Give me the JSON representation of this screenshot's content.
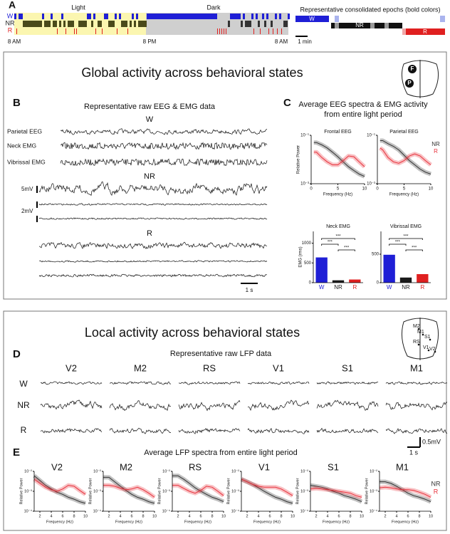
{
  "panel_a": {
    "letter": "A",
    "light_label": "Light",
    "dark_label": "Dark",
    "states": [
      "W",
      "NR",
      "R"
    ],
    "state_colors": [
      "#1f1fd6",
      "#1a1a1a",
      "#e02020"
    ],
    "times": [
      "8 AM",
      "8 PM",
      "8 AM"
    ],
    "epochs_title": "Representative consolidated epochs (bold colors)",
    "epoch_states": [
      "W",
      "NR",
      "R"
    ],
    "scale_label": "1 min"
  },
  "global": {
    "title": "Global activity across behavioral states",
    "electrodes": [
      "F",
      "P"
    ],
    "panel_b": {
      "letter": "B",
      "title": "Representative raw EEG & EMG data",
      "states": [
        "W",
        "NR",
        "R"
      ],
      "channels": [
        "Parietal EEG",
        "Neck EMG",
        "Vibrissal EMG"
      ],
      "scales": [
        "5mV",
        "2mV",
        "1 s"
      ]
    },
    "panel_c": {
      "letter": "C",
      "title_lines": [
        "Average EEG spectra & EMG activity",
        "from entire light period"
      ],
      "spectra": {
        "type": "line",
        "x_label": "Frequency (Hz)",
        "y_label": "Relative Power",
        "log_y": true,
        "xlim": [
          0,
          10
        ],
        "xticks": [
          0,
          5,
          10
        ],
        "ylim": [
          0.001,
          0.1
        ],
        "yticks": [
          {
            "value": 0.1,
            "label": "10⁻¹"
          },
          {
            "value": 0.001,
            "label": "10⁻³"
          }
        ],
        "x": [
          0.5,
          1,
          2,
          3,
          4,
          5,
          6,
          7,
          8,
          9,
          10
        ],
        "panels": [
          {
            "title": "Frontal EEG",
            "series": [
              {
                "name": "NR",
                "color": "#333333",
                "values": [
                  0.05,
                  0.05,
                  0.04,
                  0.03,
                  0.02,
                  0.013,
                  0.008,
                  0.005,
                  0.0035,
                  0.0025,
                  0.002
                ]
              },
              {
                "name": "R",
                "color": "#e8323c",
                "values": [
                  0.02,
                  0.02,
                  0.012,
                  0.008,
                  0.006,
                  0.006,
                  0.009,
                  0.014,
                  0.013,
                  0.008,
                  0.005
                ]
              }
            ]
          },
          {
            "title": "Parietal EEG",
            "series": [
              {
                "name": "NR",
                "color": "#333333",
                "values": [
                  0.06,
                  0.06,
                  0.045,
                  0.035,
                  0.025,
                  0.015,
                  0.009,
                  0.006,
                  0.004,
                  0.003,
                  0.0025
                ]
              },
              {
                "name": "R",
                "color": "#e8323c",
                "values": [
                  0.03,
                  0.025,
                  0.012,
                  0.008,
                  0.007,
                  0.009,
                  0.014,
                  0.017,
                  0.014,
                  0.009,
                  0.006
                ]
              }
            ]
          }
        ]
      },
      "emg": {
        "type": "bar",
        "y_label": "EMG (rms)",
        "categories": [
          "W",
          "NR",
          "R"
        ],
        "colors": [
          "#1f1fd6",
          "#1a1a1a",
          "#e02020"
        ],
        "significance": [
          "***",
          "***",
          "***"
        ],
        "panels": [
          {
            "title": "Neck EMG",
            "values": [
              640,
              60,
              80
            ],
            "ylim": [
              0,
              1300
            ],
            "yticks": [
              0,
              500,
              1000
            ]
          },
          {
            "title": "Vibrissal EMG",
            "values": [
              490,
              90,
              150
            ],
            "ylim": [
              0,
              900
            ],
            "yticks": [
              0,
              500
            ]
          }
        ]
      }
    }
  },
  "local": {
    "title": "Local activity across behavioral states",
    "sites": [
      "M2",
      "M1",
      "S1",
      "RS",
      "V1",
      "V2"
    ],
    "panel_d": {
      "letter": "D",
      "title": "Representative raw LFP data",
      "regions": [
        "V2",
        "M2",
        "RS",
        "V1",
        "S1",
        "M1"
      ],
      "states": [
        "W",
        "NR",
        "R"
      ],
      "scales": [
        "0.5mV",
        "1 s"
      ]
    },
    "panel_e": {
      "letter": "E",
      "title": "Average LFP spectra from entire light period",
      "type": "line",
      "x_label": "Frequency (Hz)",
      "y_label": "Relative Power",
      "log_y": true,
      "x": [
        1,
        2,
        3,
        4,
        5,
        6,
        7,
        8,
        9,
        10
      ],
      "xlim": [
        1,
        10
      ],
      "xticks": [
        2,
        4,
        6,
        8,
        10
      ],
      "ylim": [
        0.0001,
        0.01
      ],
      "yticks": [
        {
          "value": 0.01,
          "label": "10⁻²"
        },
        {
          "value": 0.001,
          "label": "10⁻³"
        },
        {
          "value": 0.0001,
          "label": "10⁻⁴"
        }
      ],
      "series_names": [
        "NR",
        "R"
      ],
      "colors": [
        "#333333",
        "#e8323c"
      ],
      "panels": [
        {
          "title": "V2",
          "NR": [
            0.006,
            0.0035,
            0.002,
            0.0013,
            0.0009,
            0.0007,
            0.0005,
            0.0004,
            0.0003,
            0.00025
          ],
          "R": [
            0.004,
            0.0025,
            0.0016,
            0.0012,
            0.001,
            0.0013,
            0.002,
            0.0018,
            0.0011,
            0.0007
          ]
        },
        {
          "title": "M2",
          "NR": [
            0.005,
            0.005,
            0.003,
            0.0018,
            0.0011,
            0.0007,
            0.0005,
            0.0004,
            0.0003,
            0.00025
          ],
          "R": [
            0.002,
            0.002,
            0.0018,
            0.0014,
            0.0012,
            0.0013,
            0.0016,
            0.0012,
            0.0008,
            0.0005
          ]
        },
        {
          "title": "RS",
          "NR": [
            0.006,
            0.006,
            0.004,
            0.0025,
            0.0015,
            0.001,
            0.0007,
            0.0005,
            0.0004,
            0.0003
          ],
          "R": [
            0.002,
            0.002,
            0.0014,
            0.001,
            0.0008,
            0.0011,
            0.0018,
            0.0016,
            0.001,
            0.0006
          ]
        },
        {
          "title": "V1",
          "NR": [
            0.004,
            0.003,
            0.0022,
            0.0015,
            0.001,
            0.0007,
            0.0005,
            0.0004,
            0.0003,
            0.00025
          ],
          "R": [
            0.004,
            0.003,
            0.0022,
            0.0018,
            0.0016,
            0.0016,
            0.0016,
            0.0013,
            0.0009,
            0.0006
          ]
        },
        {
          "title": "S1",
          "NR": [
            0.002,
            0.0018,
            0.0016,
            0.0013,
            0.001,
            0.0008,
            0.0006,
            0.0005,
            0.0004,
            0.0003
          ],
          "R": [
            0.0013,
            0.0014,
            0.0013,
            0.0012,
            0.0011,
            0.001,
            0.0009,
            0.0008,
            0.0006,
            0.0005
          ]
        },
        {
          "title": "M1",
          "NR": [
            0.003,
            0.003,
            0.0025,
            0.0018,
            0.0012,
            0.0008,
            0.0006,
            0.0005,
            0.0004,
            0.0003
          ],
          "R": [
            0.0015,
            0.0016,
            0.0015,
            0.0013,
            0.0012,
            0.0012,
            0.0011,
            0.0009,
            0.0007,
            0.0005
          ]
        }
      ]
    }
  }
}
